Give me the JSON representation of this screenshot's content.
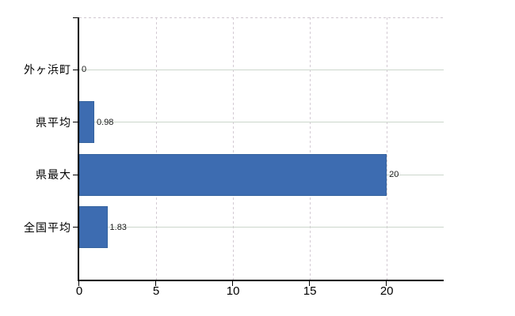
{
  "chart_data": {
    "type": "bar",
    "orientation": "horizontal",
    "title": "",
    "xlabel": "",
    "ylabel": "",
    "categories": [
      "外ヶ浜町",
      "県平均",
      "県最大",
      "全国平均"
    ],
    "values": [
      0,
      0.98,
      20,
      1.83
    ],
    "value_labels": [
      "0",
      "0.98",
      "20",
      "1.83"
    ],
    "x_tick_labels": [
      "0",
      "5",
      "10",
      "15",
      "20"
    ],
    "x_tick_values": [
      0,
      5,
      10,
      15,
      20
    ],
    "xlim": [
      0,
      23.7
    ],
    "legend": false,
    "grid": {
      "horizontal": "solid",
      "vertical": "dashed",
      "top_border": "dashed"
    },
    "colors": {
      "bar": "#3d6cb1",
      "bar_edge": "#36649f",
      "horizontal_grid": "#ccd6cc",
      "vertical_grid": "#d3cad3",
      "top_border": "#cfc7cf",
      "axis": "#000000",
      "category_text": "#000000",
      "tick_text": "#000000",
      "value_text": "#1a1a1a"
    }
  }
}
